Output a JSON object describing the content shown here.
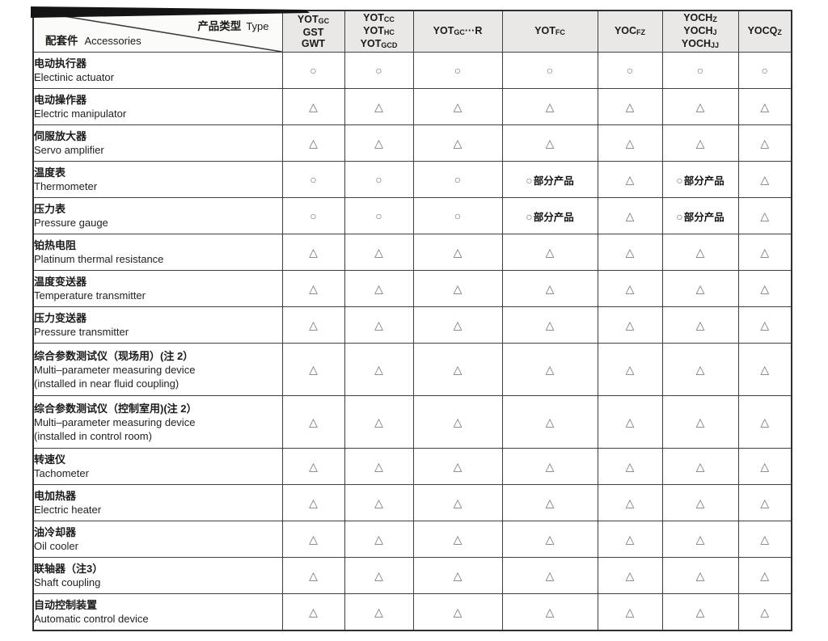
{
  "doc": {
    "kind": "accessory-compatibility-table"
  },
  "colors": {
    "header_bg": "#e9e8e6",
    "grid_line": "#3f3f3f",
    "symbol_gray": "#6e6e6e",
    "text": "#1a1a1a"
  },
  "table": {
    "corner": {
      "top_zh": "产品类型",
      "top_en": "Type",
      "bottom_zh": "配套件",
      "bottom_en": "Accessories"
    },
    "partial_label": "部分产品",
    "symbols": {
      "circle": "○",
      "triangle": "△"
    },
    "columns": [
      {
        "lines": [
          {
            "main": "YOT",
            "sub": "GC"
          },
          {
            "main": "GST",
            "sub": ""
          },
          {
            "main": "GWT",
            "sub": ""
          }
        ]
      },
      {
        "lines": [
          {
            "main": "YOT",
            "sub": "CC"
          },
          {
            "main": "YOT",
            "sub": "HC"
          },
          {
            "main": "YOT",
            "sub": "GCD"
          }
        ]
      },
      {
        "lines": [
          {
            "main": "YOT",
            "sub": "GC",
            "tail": "···R"
          }
        ]
      },
      {
        "lines": [
          {
            "main": "YOT",
            "sub": "FC"
          }
        ]
      },
      {
        "lines": [
          {
            "main": "YOC",
            "sub": "FZ"
          }
        ]
      },
      {
        "lines": [
          {
            "main": "YOCH",
            "sub": "Z"
          },
          {
            "main": "YOCH",
            "sub": "J"
          },
          {
            "main": "YOCH",
            "sub": "JJ"
          }
        ]
      },
      {
        "lines": [
          {
            "main": "YOCQ",
            "sub": "Z"
          }
        ]
      }
    ],
    "rows": [
      {
        "zh": "电动执行器",
        "en": [
          "Electinic actuator"
        ],
        "tall": false,
        "cells": [
          "circle",
          "circle",
          "circle",
          "circle",
          "circle",
          "circle",
          "circle"
        ]
      },
      {
        "zh": "电动操作器",
        "en": [
          "Electric manipulator"
        ],
        "tall": false,
        "cells": [
          "triangle",
          "triangle",
          "triangle",
          "triangle",
          "triangle",
          "triangle",
          "triangle"
        ]
      },
      {
        "zh": "伺服放大器",
        "en": [
          "Servo amplifier"
        ],
        "tall": false,
        "cells": [
          "triangle",
          "triangle",
          "triangle",
          "triangle",
          "triangle",
          "triangle",
          "triangle"
        ]
      },
      {
        "zh": "温度表",
        "en": [
          "Thermometer"
        ],
        "tall": false,
        "cells": [
          "circle",
          "circle",
          "circle",
          "circle-partial",
          "triangle",
          "circle-partial",
          "triangle"
        ]
      },
      {
        "zh": "压力表",
        "en": [
          "Pressure gauge"
        ],
        "tall": false,
        "cells": [
          "circle",
          "circle",
          "circle",
          "circle-partial",
          "triangle",
          "circle-partial",
          "triangle"
        ]
      },
      {
        "zh": "铂热电阻",
        "en": [
          "Platinum thermal resistance"
        ],
        "tall": false,
        "cells": [
          "triangle",
          "triangle",
          "triangle",
          "triangle",
          "triangle",
          "triangle",
          "triangle"
        ]
      },
      {
        "zh": "温度变送器",
        "en": [
          "Temperature transmitter"
        ],
        "tall": false,
        "cells": [
          "triangle",
          "triangle",
          "triangle",
          "triangle",
          "triangle",
          "triangle",
          "triangle"
        ]
      },
      {
        "zh": "压力变送器",
        "en": [
          "Pressure transmitter"
        ],
        "tall": false,
        "cells": [
          "triangle",
          "triangle",
          "triangle",
          "triangle",
          "triangle",
          "triangle",
          "triangle"
        ]
      },
      {
        "zh": "综合参数测试仪（现场用）(注 2）",
        "en": [
          "Multi–parameter measuring device",
          "(installed in near fluid coupling)"
        ],
        "tall": true,
        "cells": [
          "triangle",
          "triangle",
          "triangle",
          "triangle",
          "triangle",
          "triangle",
          "triangle"
        ]
      },
      {
        "zh": "综合参数测试仪（控制室用)(注 2）",
        "en": [
          "Multi–parameter measuring device",
          "(installed in control room)"
        ],
        "tall": true,
        "cells": [
          "triangle",
          "triangle",
          "triangle",
          "triangle",
          "triangle",
          "triangle",
          "triangle"
        ]
      },
      {
        "zh": "转速仪",
        "en": [
          "Tachometer"
        ],
        "tall": false,
        "cells": [
          "triangle",
          "triangle",
          "triangle",
          "triangle",
          "triangle",
          "triangle",
          "triangle"
        ]
      },
      {
        "zh": "电加热器",
        "en": [
          "Electric heater"
        ],
        "tall": false,
        "cells": [
          "triangle",
          "triangle",
          "triangle",
          "triangle",
          "triangle",
          "triangle",
          "triangle"
        ]
      },
      {
        "zh": "油冷却器",
        "en": [
          "Oil cooler"
        ],
        "tall": false,
        "cells": [
          "triangle",
          "triangle",
          "triangle",
          "triangle",
          "triangle",
          "triangle",
          "triangle"
        ]
      },
      {
        "zh": "联轴器（注3）",
        "en": [
          "Shaft coupling"
        ],
        "tall": false,
        "cells": [
          "triangle",
          "triangle",
          "triangle",
          "triangle",
          "triangle",
          "triangle",
          "triangle"
        ]
      },
      {
        "zh": "自动控制装置",
        "en": [
          "Automatic control device"
        ],
        "tall": false,
        "cells": [
          "triangle",
          "triangle",
          "triangle",
          "triangle",
          "triangle",
          "triangle",
          "triangle"
        ]
      }
    ]
  }
}
